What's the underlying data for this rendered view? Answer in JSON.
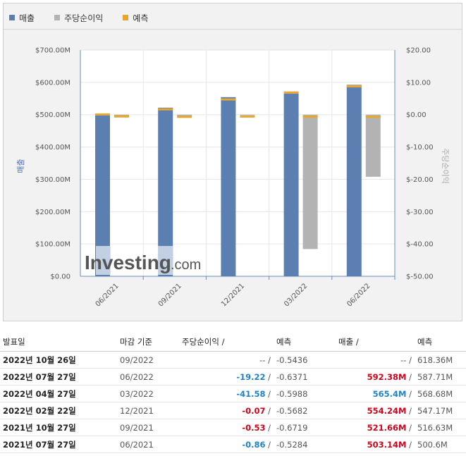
{
  "legend": [
    {
      "label": "매출",
      "color": "#5b7fb0"
    },
    {
      "label": "주당순이익",
      "color": "#b3b3b3"
    },
    {
      "label": "예측",
      "color": "#e8a62f"
    }
  ],
  "watermark": {
    "brand": "Investing",
    "suffix": ".com"
  },
  "chart_data": {
    "type": "bar",
    "categories": [
      "06/2021",
      "09/2021",
      "12/2021",
      "03/2022",
      "06/2022"
    ],
    "left_axis": {
      "label": "매출",
      "ticks": [
        "$700.00M",
        "$600.00M",
        "$500.00M",
        "$400.00M",
        "$300.00M",
        "$200.00M",
        "$100.00M",
        "$0.00"
      ],
      "ylim": [
        0,
        700
      ]
    },
    "right_axis": {
      "label": "주당순이익",
      "ticks": [
        "$20.00",
        "$10.00",
        "$0.00",
        "$-10.00",
        "$-20.00",
        "$-30.00",
        "$-40.00",
        "$-50.00"
      ],
      "ylim": [
        -50,
        20
      ]
    },
    "series": [
      {
        "name": "매출",
        "axis": "left",
        "values": [
          503.14,
          521.66,
          554.24,
          565.4,
          592.38
        ],
        "forecast": [
          500.6,
          516.63,
          547.17,
          568.68,
          587.71
        ]
      },
      {
        "name": "주당순이익",
        "axis": "right",
        "values": [
          -0.86,
          -0.53,
          -0.07,
          -41.58,
          -19.22
        ],
        "forecast": [
          -0.5284,
          -0.6719,
          -0.5682,
          -0.5988,
          -0.6371
        ]
      }
    ],
    "grid": true,
    "legend_position": "top-left"
  },
  "table": {
    "headers": {
      "date": "발표일",
      "period": "마감 기준",
      "eps": "주당순이익",
      "eps_fc": "예측",
      "rev": "매출",
      "rev_fc": "예측",
      "sep": "/"
    },
    "rows": [
      {
        "date": "2022년 10월 26일",
        "period": "09/2022",
        "eps": "--",
        "eps_fc": "-0.5436",
        "rev": "--",
        "rev_fc": "618.36M",
        "eps_class": "dim",
        "rev_class": "dim"
      },
      {
        "date": "2022년 07월 27일",
        "period": "06/2022",
        "eps": "-19.22",
        "eps_fc": "-0.6371",
        "rev": "592.38M",
        "rev_fc": "587.71M",
        "eps_class": "neg",
        "rev_class": "pos"
      },
      {
        "date": "2022년 04월 27일",
        "period": "03/2022",
        "eps": "-41.58",
        "eps_fc": "-0.5988",
        "rev": "565.4M",
        "rev_fc": "568.68M",
        "eps_class": "neg",
        "rev_class": "neg"
      },
      {
        "date": "2022년 02월 22일",
        "period": "12/2021",
        "eps": "-0.07",
        "eps_fc": "-0.5682",
        "rev": "554.24M",
        "rev_fc": "547.17M",
        "eps_class": "pos",
        "rev_class": "pos"
      },
      {
        "date": "2021년 10월 27일",
        "period": "09/2021",
        "eps": "-0.53",
        "eps_fc": "-0.6719",
        "rev": "521.66M",
        "rev_fc": "516.63M",
        "eps_class": "pos",
        "rev_class": "pos"
      },
      {
        "date": "2021년 07월 27일",
        "period": "06/2021",
        "eps": "-0.86",
        "eps_fc": "-0.5284",
        "rev": "503.14M",
        "rev_fc": "500.6M",
        "eps_class": "neg",
        "rev_class": "pos"
      }
    ]
  }
}
